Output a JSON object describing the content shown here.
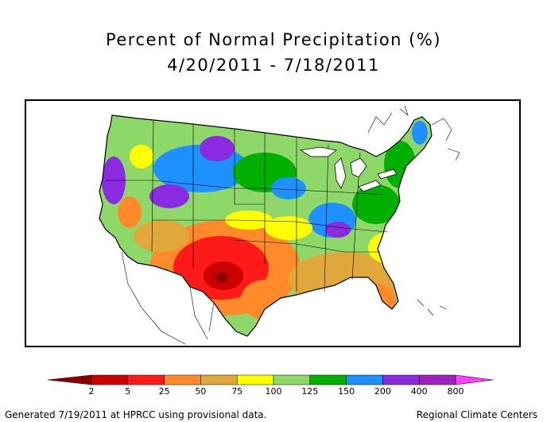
{
  "header": {
    "title": "Percent of Normal Precipitation (%)",
    "date_range": "4/20/2011 - 7/18/2011"
  },
  "legend": {
    "tick_labels": [
      "2",
      "5",
      "25",
      "50",
      "75",
      "100",
      "125",
      "150",
      "200",
      "400",
      "800"
    ],
    "bins": [
      {
        "color": "#8b0000"
      },
      {
        "color": "#cc0000"
      },
      {
        "color": "#ff1a1a"
      },
      {
        "color": "#ff8a2a"
      },
      {
        "color": "#e0a83a"
      },
      {
        "color": "#ffff00"
      },
      {
        "color": "#8ed86a"
      },
      {
        "color": "#00b000"
      },
      {
        "color": "#1e90ff"
      },
      {
        "color": "#8a2be2"
      },
      {
        "color": "#a020c0"
      },
      {
        "color": "#ff3cff"
      }
    ]
  },
  "footer": {
    "left": "Generated 7/19/2011 at HPRCC using provisional data.",
    "right": "Regional Climate Centers"
  }
}
